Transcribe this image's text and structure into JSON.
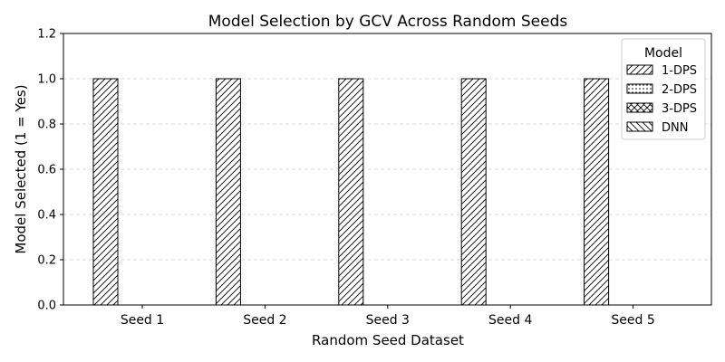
{
  "chart_data": {
    "type": "bar",
    "title": "Model Selection by GCV Across Random Seeds",
    "xlabel": "Random Seed Dataset",
    "ylabel": "Model Selected (1 = Yes)",
    "categories": [
      "Seed 1",
      "Seed 2",
      "Seed 3",
      "Seed 4",
      "Seed 5"
    ],
    "ylim": [
      0,
      1.2
    ],
    "yticks": [
      "0.0",
      "0.2",
      "0.4",
      "0.6",
      "0.8",
      "1.0",
      "1.2"
    ],
    "grid": "horizontal dashed",
    "legend": {
      "title": "Model",
      "placement": "top-right"
    },
    "series": [
      {
        "name": "1-DPS",
        "pattern": "diagonal-forward",
        "values": [
          1,
          1,
          1,
          1,
          1
        ]
      },
      {
        "name": "2-DPS",
        "pattern": "dots",
        "values": [
          0,
          0,
          0,
          0,
          0
        ]
      },
      {
        "name": "3-DPS",
        "pattern": "crosshatch",
        "values": [
          0,
          0,
          0,
          0,
          0
        ]
      },
      {
        "name": "DNN",
        "pattern": "diagonal-back",
        "values": [
          0,
          0,
          0,
          0,
          0
        ]
      }
    ]
  }
}
